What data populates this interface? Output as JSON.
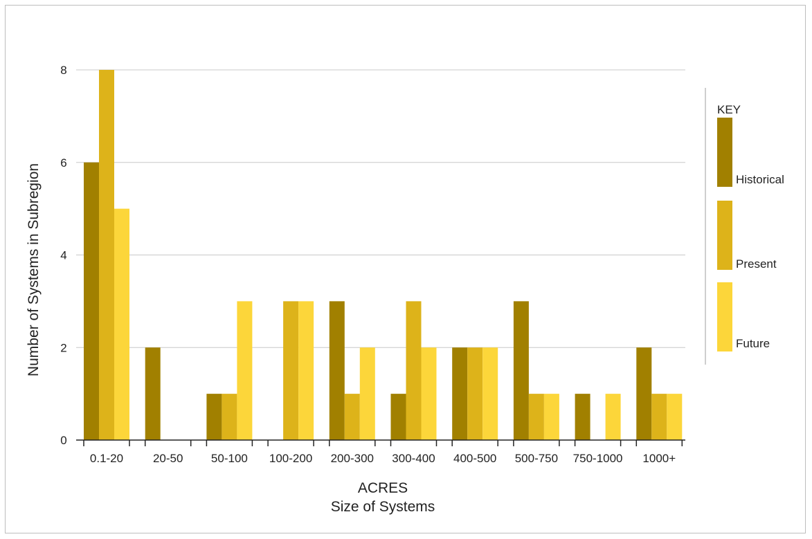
{
  "chart_data": {
    "type": "bar",
    "ylabel": "Number of Systems in Subregion",
    "xlabel_line1": "ACRES",
    "xlabel_line2": "Size of Systems",
    "categories": [
      "0.1-20",
      "20-50",
      "50-100",
      "100-200",
      "200-300",
      "300-400",
      "400-500",
      "500-750",
      "750-1000",
      "1000+"
    ],
    "series": [
      {
        "name": "Historical",
        "color": "#A18000",
        "values": [
          6,
          2,
          1,
          0,
          3,
          1,
          2,
          3,
          1,
          2
        ]
      },
      {
        "name": "Present",
        "color": "#DDB31A",
        "values": [
          8,
          0,
          1,
          3,
          1,
          3,
          2,
          1,
          0,
          1
        ]
      },
      {
        "name": "Future",
        "color": "#FCD63A",
        "values": [
          5,
          0,
          3,
          3,
          2,
          2,
          2,
          1,
          1,
          1
        ]
      }
    ],
    "ylim": [
      0,
      8
    ],
    "yticks": [
      0,
      2,
      4,
      6,
      8
    ],
    "grid": true,
    "legend": {
      "title": "KEY",
      "placement": "right"
    }
  }
}
